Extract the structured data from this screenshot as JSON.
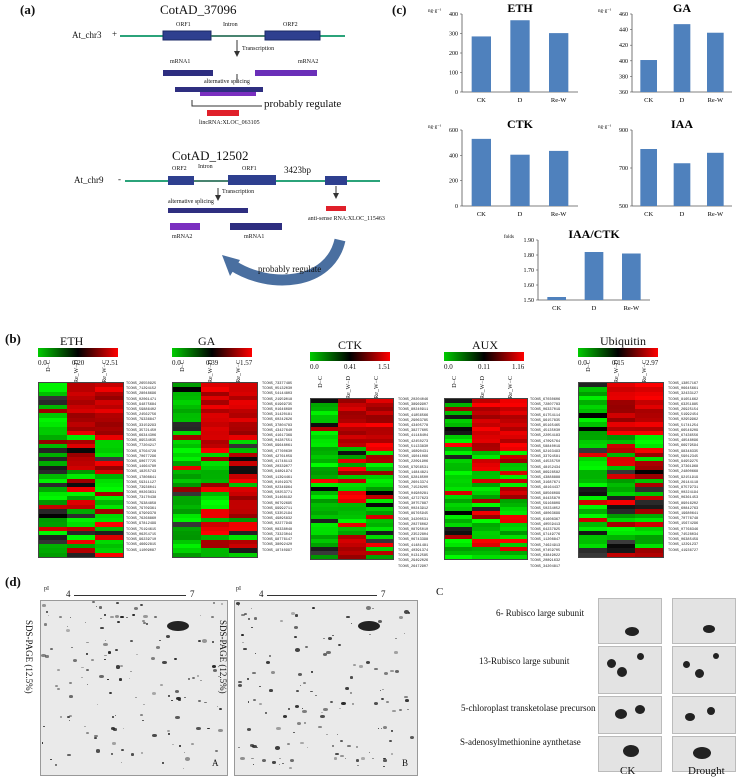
{
  "panel_a": {
    "letter": "(a)",
    "gene1": {
      "title": "CotAD_37096",
      "chr": "At_chr3",
      "strand": "+",
      "orf1": "ORF1",
      "intron": "Intron",
      "orf2": "ORF2",
      "transcription": "Transcription",
      "mrna1": "mRNA1",
      "mrna2": "mRNA2",
      "splicing": "alternative splicing",
      "regulate": "probably  regulate",
      "lnc": "lincRNA:XLOC_063105"
    },
    "gene2": {
      "title": "CotAD_12502",
      "chr": "At_chr9",
      "strand": "-",
      "orf2": "ORF2",
      "intron": "Intron",
      "orf1": "ORF1",
      "bp": "3423bp",
      "transcription": "Transcription",
      "splicing": "alternative splicing",
      "mrna2": "mRNA2",
      "mrna1": "mRNA1",
      "antisense": "anti-sense RNA:XLOC_115463",
      "regulate": "probably  regulate"
    }
  },
  "panel_c_top": {
    "letter": "(c)",
    "colors": {
      "bar": "#4f81bd"
    }
  },
  "chart_data": [
    {
      "type": "bar",
      "title": "ETH",
      "unit": "ng·g⁻¹",
      "categories": [
        "CK",
        "D",
        "Re-W"
      ],
      "values": [
        285,
        368,
        302
      ],
      "ylim": [
        0,
        400
      ],
      "ticks": [
        "0",
        "100",
        "200",
        "300",
        "400"
      ]
    },
    {
      "type": "bar",
      "title": "GA",
      "unit": "ng·g⁻¹",
      "categories": [
        "CK",
        "D",
        "Re-W"
      ],
      "values": [
        401,
        447,
        436
      ],
      "ylim": [
        360,
        460
      ],
      "ticks": [
        "360",
        "380",
        "400",
        "420",
        "440",
        "460"
      ]
    },
    {
      "type": "bar",
      "title": "CTK",
      "unit": "ng·g⁻¹",
      "categories": [
        "CK",
        "D",
        "Re-W"
      ],
      "values": [
        530,
        405,
        435
      ],
      "ylim": [
        0,
        600
      ],
      "ticks": [
        "0",
        "200",
        "400",
        "600"
      ]
    },
    {
      "type": "bar",
      "title": "IAA",
      "unit": "ng·g⁻¹",
      "categories": [
        "CK",
        "D",
        "Re-W"
      ],
      "values": [
        800,
        725,
        780
      ],
      "ylim": [
        500,
        900
      ],
      "ticks": [
        "500",
        "700",
        "900"
      ]
    },
    {
      "type": "bar",
      "title": "IAA/CTK",
      "unit": "folds",
      "categories": [
        "CK",
        "D",
        "Re-W"
      ],
      "values": [
        1.52,
        1.82,
        1.81
      ],
      "ylim": [
        1.5,
        1.9
      ],
      "ticks": [
        "1.50",
        "1.60",
        "1.70",
        "1.80",
        "1.90"
      ]
    }
  ],
  "panel_b": {
    "letter": "(b)",
    "heatmaps": [
      {
        "title": "ETH",
        "legend": [
          "0.0",
          "0.20",
          "2.51"
        ],
        "cols": [
          "D−C",
          "Re_W−D",
          "Re_W−C"
        ]
      },
      {
        "title": "GA",
        "legend": [
          "0.0",
          "0.39",
          "1.57"
        ],
        "cols": [
          "D−C",
          "Re_W−D",
          "Re_W−C"
        ]
      },
      {
        "title": "CTK",
        "legend": [
          "0.0",
          "0.41",
          "1.51"
        ],
        "cols": [
          "D−C",
          "Re_W−D",
          "Re_W−C"
        ]
      },
      {
        "title": "AUX",
        "legend": [
          "0.0",
          "0.11",
          "1.16"
        ],
        "cols": [
          "D−C",
          "Re_W−D",
          "Re_W−C"
        ]
      },
      {
        "title": "Ubiquitin",
        "legend": [
          "0.0",
          "0.15",
          "2.97"
        ],
        "cols": [
          "D−C",
          "Re_W−D",
          "Re_W−C"
        ]
      }
    ]
  },
  "panel_d": {
    "letter": "(d)",
    "pi": "pI",
    "range_left": "4",
    "range_right": "7",
    "yaxis": "SDS-PAGE (12.5%)",
    "gel_a": "A",
    "gel_b": "B",
    "c_letter": "C",
    "proteins": [
      "6- Rubisco large subunit",
      "13-Rubisco large subunit",
      "5-chloroplast transketolase precurson",
      "S-adenosylmethionine aynthetase"
    ],
    "ck": "CK",
    "drought": "Drought"
  }
}
